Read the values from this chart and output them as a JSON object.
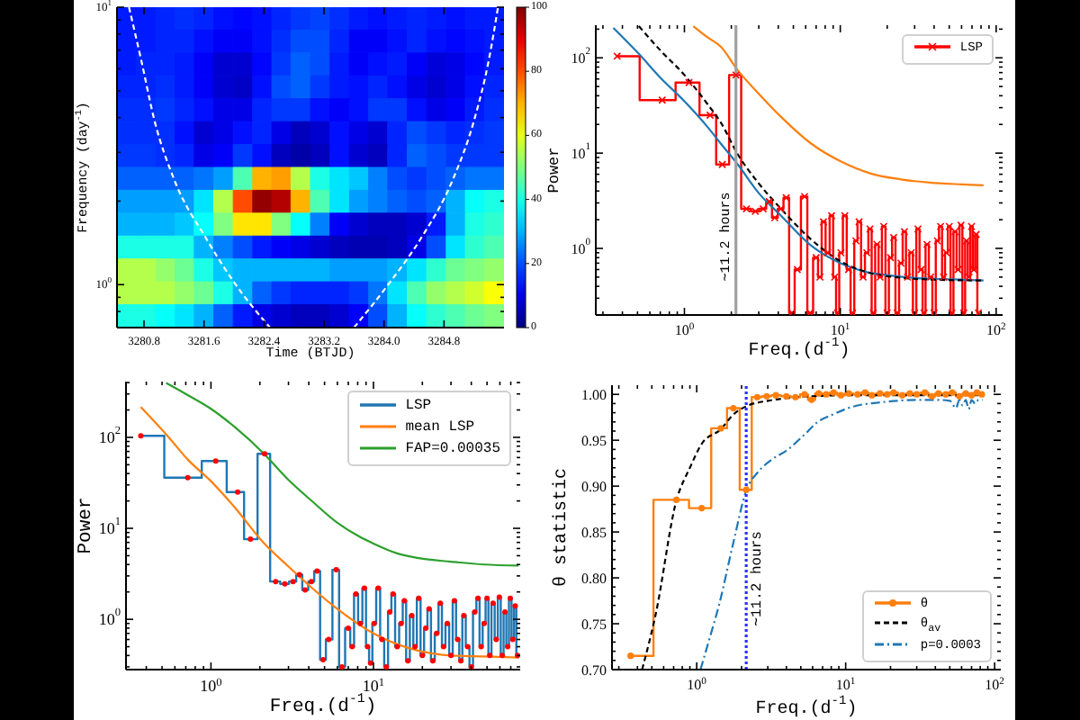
{
  "chart_data": [
    {
      "type": "heatmap",
      "xlabel": "Time (BTJD)",
      "ylabel": "Frequency (day$^{-1}$)",
      "log": "y",
      "xlim": [
        3280.44,
        3285.6
      ],
      "xticks": [
        3280.8,
        3281.6,
        3282.4,
        3283.2,
        {
          "value": 3284,
          "label": "3284.0"
        },
        3284.8
      ],
      "ylim": [
        0.7,
        10
      ],
      "yticks": [
        {
          "value": 0.8,
          "label": null
        },
        {
          "value": 0.9,
          "label": null
        },
        {
          "value": 1,
          "label": "10$^{0}$"
        },
        {
          "value": 2,
          "label": null
        },
        {
          "value": 3,
          "label": null
        },
        {
          "value": 4,
          "label": null
        },
        {
          "value": 5,
          "label": null
        },
        {
          "value": 6,
          "label": null
        },
        {
          "value": 7,
          "label": null
        },
        {
          "value": 8,
          "label": null
        },
        {
          "value": 9,
          "label": null
        },
        {
          "value": 10,
          "label": "10$^{1}$"
        }
      ],
      "x": [
        3280.57,
        3280.83,
        3281.09,
        3281.34,
        3281.6,
        3281.86,
        3282.12,
        3282.38,
        3282.63,
        3282.89,
        3283.15,
        3283.41,
        3283.67,
        3283.92,
        3284.18,
        3284.44,
        3284.7,
        3284.96,
        3285.21,
        3285.47
      ],
      "cells": [
        [
          15,
          15,
          16,
          17,
          16,
          14,
          13,
          14,
          16,
          18,
          19,
          17,
          15,
          14,
          15,
          16,
          15,
          14,
          15,
          15
        ],
        [
          15,
          15,
          16,
          16,
          14,
          12,
          12,
          14,
          17,
          20,
          20,
          16,
          12,
          12,
          14,
          16,
          14,
          13,
          14,
          15
        ],
        [
          15,
          16,
          16,
          15,
          12,
          8,
          8,
          13,
          18,
          22,
          20,
          15,
          12,
          14,
          15,
          12,
          9,
          10,
          13,
          15
        ],
        [
          16,
          16,
          17,
          15,
          12,
          8,
          7,
          14,
          20,
          22,
          18,
          15,
          14,
          16,
          14,
          10,
          8,
          10,
          14,
          16
        ],
        [
          17,
          17,
          18,
          16,
          14,
          10,
          10,
          16,
          18,
          18,
          14,
          12,
          14,
          18,
          18,
          14,
          10,
          12,
          15,
          17
        ],
        [
          17,
          17,
          17,
          14,
          8,
          10,
          14,
          16,
          10,
          6,
          8,
          14,
          10,
          8,
          16,
          20,
          18,
          16,
          17,
          18
        ],
        [
          18,
          18,
          17,
          16,
          10,
          12,
          18,
          14,
          6,
          4,
          6,
          14,
          8,
          6,
          16,
          22,
          20,
          18,
          18,
          18
        ],
        [
          22,
          22,
          22,
          22,
          24,
          28,
          45,
          70,
          72,
          55,
          40,
          35,
          32,
          25,
          20,
          18,
          20,
          22,
          24,
          24
        ],
        [
          28,
          28,
          28,
          28,
          35,
          55,
          80,
          98,
          95,
          70,
          45,
          35,
          28,
          25,
          22,
          20,
          22,
          30,
          38,
          40
        ],
        [
          30,
          30,
          30,
          32,
          38,
          50,
          65,
          65,
          50,
          38,
          25,
          12,
          8,
          6,
          6,
          8,
          15,
          30,
          40,
          42
        ],
        [
          40,
          40,
          40,
          40,
          30,
          25,
          20,
          15,
          12,
          10,
          8,
          6,
          5,
          5,
          6,
          10,
          20,
          35,
          42,
          45
        ],
        [
          55,
          55,
          52,
          48,
          40,
          32,
          30,
          30,
          30,
          30,
          30,
          28,
          28,
          28,
          30,
          35,
          42,
          48,
          50,
          52
        ],
        [
          55,
          55,
          55,
          52,
          48,
          40,
          30,
          22,
          18,
          16,
          16,
          16,
          18,
          24,
          35,
          45,
          52,
          55,
          58,
          62
        ],
        [
          40,
          40,
          38,
          35,
          30,
          22,
          15,
          10,
          8,
          6,
          6,
          8,
          12,
          20,
          30,
          38,
          42,
          45,
          48,
          50
        ]
      ],
      "clim": [
        0,
        100
      ],
      "cticks": [
        0,
        20,
        40,
        60,
        80,
        100
      ],
      "series": [
        {
          "type": "line",
          "color": "#ffffff",
          "line_style": "dashed",
          "x": [
            3280.6,
            3280.76,
            3280.94,
            3281.2,
            3281.64,
            3282.0,
            3282.48
          ],
          "values": [
            10,
            6.5,
            3.9,
            2.4,
            1.45,
            1.02,
            0.7
          ]
        },
        {
          "type": "line",
          "color": "#ffffff",
          "line_style": "dashed",
          "x": [
            3283.6,
            3284.08,
            3284.48,
            3284.92,
            3285.2,
            3285.4,
            3285.52
          ],
          "values": [
            0.7,
            1.02,
            1.45,
            2.4,
            3.9,
            6.5,
            10
          ]
        }
      ]
    },
    {
      "type": "line",
      "xlabel": "Freq.(d$^{-1}$)",
      "ylabel": "Power",
      "log": "xy",
      "legend": "top right",
      "xlim": [
        0.27,
        110
      ],
      "xticks": [
        {
          "value": 0.3,
          "label": null
        },
        {
          "value": 0.4,
          "label": null
        },
        {
          "value": 0.5,
          "label": null
        },
        {
          "value": 0.6,
          "label": null
        },
        {
          "value": 0.7,
          "label": null
        },
        {
          "value": 0.8,
          "label": null
        },
        {
          "value": 0.9,
          "label": null
        },
        {
          "value": 1,
          "label": "10$^{0}$"
        },
        {
          "value": 2,
          "label": null
        },
        {
          "value": 3,
          "label": null
        },
        {
          "value": 4,
          "label": null
        },
        {
          "value": 5,
          "label": null
        },
        {
          "value": 6,
          "label": null
        },
        {
          "value": 7,
          "label": null
        },
        {
          "value": 8,
          "label": null
        },
        {
          "value": 9,
          "label": null
        },
        {
          "value": 10,
          "label": "10$^{1}$"
        },
        {
          "value": 20,
          "label": null
        },
        {
          "value": 30,
          "label": null
        },
        {
          "value": 40,
          "label": null
        },
        {
          "value": 50,
          "label": null
        },
        {
          "value": 60,
          "label": null
        },
        {
          "value": 70,
          "label": null
        },
        {
          "value": 80,
          "label": null
        },
        {
          "value": 90,
          "label": null
        },
        {
          "value": 100,
          "label": "10$^{2}$"
        }
      ],
      "ylim": [
        0.2,
        220
      ],
      "yticks": [
        {
          "value": 0.3,
          "label": null
        },
        {
          "value": 0.4,
          "label": null
        },
        {
          "value": 0.5,
          "label": null
        },
        {
          "value": 0.6,
          "label": null
        },
        {
          "value": 0.7,
          "label": null
        },
        {
          "value": 0.8,
          "label": null
        },
        {
          "value": 0.9,
          "label": null
        },
        {
          "value": 1,
          "label": "10$^{0}$"
        },
        {
          "value": 2,
          "label": null
        },
        {
          "value": 3,
          "label": null
        },
        {
          "value": 4,
          "label": null
        },
        {
          "value": 5,
          "label": null
        },
        {
          "value": 6,
          "label": null
        },
        {
          "value": 7,
          "label": null
        },
        {
          "value": 8,
          "label": null
        },
        {
          "value": 9,
          "label": null
        },
        {
          "value": 10,
          "label": "10$^{1}$"
        },
        {
          "value": 20,
          "label": null
        },
        {
          "value": 30,
          "label": null
        },
        {
          "value": 40,
          "label": null
        },
        {
          "value": 50,
          "label": null
        },
        {
          "value": 60,
          "label": null
        },
        {
          "value": 70,
          "label": null
        },
        {
          "value": 80,
          "label": null
        },
        {
          "value": 90,
          "label": null
        },
        {
          "value": 100,
          "label": "10$^{2}$"
        },
        {
          "value": 200,
          "label": null
        }
      ],
      "series": [
        {
          "name": "LSP",
          "type": "step",
          "color": "#ff0000",
          "marker": "cross",
          "x": [
            0.37,
            0.72,
            1.07,
            1.46,
            1.75,
            2.14,
            2.5,
            2.85,
            3.2,
            3.5,
            3.8,
            4.15,
            4.5,
            4.9,
            5.3,
            5.9,
            6.4,
            7.0,
            7.4,
            7.8,
            8.3,
            8.8,
            9.2,
            9.6,
            10.1,
            10.7,
            11.3,
            12.0,
            12.6,
            13.2,
            14.0,
            14.8,
            15.5,
            16.3,
            17.2,
            18.0,
            19.0,
            20.0,
            21.0,
            22.0,
            23.2,
            24.5,
            25.8,
            27.0,
            28.5,
            30.0,
            31.5,
            33.0,
            34.5,
            36.0,
            38.0,
            40.0,
            42.0,
            44.0,
            46.0,
            48.0,
            50.0,
            52.0,
            54.5,
            57.0,
            59.5,
            62.0,
            64.5,
            67.0,
            69.5,
            72.0,
            74.5,
            77.0
          ],
          "values": [
            104,
            36,
            55,
            25,
            7.6,
            66,
            2.6,
            2.45,
            2.6,
            3.1,
            2.1,
            2.6,
            3.4,
            0.21,
            0.6,
            3.5,
            0.21,
            0.8,
            0.5,
            1.9,
            0.9,
            2.2,
            0.5,
            0.21,
            0.9,
            2.2,
            0.6,
            0.21,
            1.2,
            1.9,
            0.5,
            0.9,
            1.6,
            0.21,
            1.1,
            0.5,
            1.7,
            0.21,
            0.8,
            1.3,
            0.21,
            0.7,
            1.5,
            0.5,
            0.9,
            0.21,
            1.6,
            0.6,
            0.21,
            1.1,
            0.5,
            0.21,
            1.2,
            1.7,
            0.5,
            0.9,
            1.7,
            0.21,
            1.5,
            0.6,
            1.75,
            0.21,
            1.2,
            0.5,
            1.7,
            0.6,
            1.4,
            0.21
          ]
        },
        {
          "type": "line",
          "color": "#1f77b4",
          "x": [
            0.35,
            0.51,
            0.7,
            1,
            1.4,
            1.71,
            2.2,
            3,
            4.17,
            6.5,
            10.2,
            15,
            21,
            30,
            40,
            60,
            83
          ],
          "values": [
            206,
            110,
            62,
            35,
            19,
            12.6,
            7.6,
            3.8,
            2.2,
            1.07,
            0.69,
            0.56,
            0.52,
            0.49,
            0.48,
            0.47,
            0.46
          ]
        },
        {
          "type": "line",
          "color": "#000000",
          "line_style": "dashed",
          "x": [
            0.51,
            0.7,
            1,
            1.4,
            1.71,
            2.2,
            3,
            4.17,
            6.5,
            10.2,
            15.7,
            25,
            40,
            83
          ],
          "values": [
            215,
            120,
            66,
            33,
            21,
            9.7,
            4.8,
            2.6,
            1.24,
            0.72,
            0.55,
            0.49,
            0.47,
            0.46
          ]
        },
        {
          "type": "line",
          "color": "#ff7f0e",
          "x": [
            1.14,
            1.4,
            1.71,
            2.2,
            3,
            4.17,
            6.5,
            10.2,
            15.7,
            24.5,
            37.5,
            60,
            83
          ],
          "values": [
            215,
            165,
            131,
            74,
            42,
            24,
            12.6,
            8.1,
            6.1,
            5.3,
            4.9,
            4.7,
            4.6
          ]
        }
      ],
      "ref_lines": [
        {
          "axis": "x",
          "value": 2.14,
          "label": "∼11.2 hours",
          "color": "#a0a0a0"
        }
      ]
    },
    {
      "type": "line",
      "xlabel": "Freq.(d$^{-1}$)",
      "ylabel": "Power",
      "log": "xy",
      "legend": "top right",
      "xlim": [
        0.3,
        80
      ],
      "xticks": [
        {
          "value": 0.4,
          "label": null
        },
        {
          "value": 0.5,
          "label": null
        },
        {
          "value": 0.6,
          "label": null
        },
        {
          "value": 0.7,
          "label": null
        },
        {
          "value": 0.8,
          "label": null
        },
        {
          "value": 0.9,
          "label": null
        },
        {
          "value": 1,
          "label": "10$^{0}$"
        },
        {
          "value": 2,
          "label": null
        },
        {
          "value": 3,
          "label": null
        },
        {
          "value": 4,
          "label": null
        },
        {
          "value": 5,
          "label": null
        },
        {
          "value": 6,
          "label": null
        },
        {
          "value": 7,
          "label": null
        },
        {
          "value": 8,
          "label": null
        },
        {
          "value": 9,
          "label": null
        },
        {
          "value": 10,
          "label": "10$^{1}$"
        },
        {
          "value": 20,
          "label": null
        },
        {
          "value": 30,
          "label": null
        },
        {
          "value": 40,
          "label": null
        },
        {
          "value": 50,
          "label": null
        },
        {
          "value": 60,
          "label": null
        },
        {
          "value": 70,
          "label": null
        }
      ],
      "ylim": [
        0.28,
        410
      ],
      "yticks": [
        {
          "value": 0.3,
          "label": null
        },
        {
          "value": 0.4,
          "label": null
        },
        {
          "value": 0.5,
          "label": null
        },
        {
          "value": 0.6,
          "label": null
        },
        {
          "value": 0.7,
          "label": null
        },
        {
          "value": 0.8,
          "label": null
        },
        {
          "value": 0.9,
          "label": null
        },
        {
          "value": 1,
          "label": "10$^{0}$"
        },
        {
          "value": 2,
          "label": null
        },
        {
          "value": 3,
          "label": null
        },
        {
          "value": 4,
          "label": null
        },
        {
          "value": 5,
          "label": null
        },
        {
          "value": 6,
          "label": null
        },
        {
          "value": 7,
          "label": null
        },
        {
          "value": 8,
          "label": null
        },
        {
          "value": 9,
          "label": null
        },
        {
          "value": 10,
          "label": "10$^{1}$"
        },
        {
          "value": 20,
          "label": null
        },
        {
          "value": 30,
          "label": null
        },
        {
          "value": 40,
          "label": null
        },
        {
          "value": 50,
          "label": null
        },
        {
          "value": 60,
          "label": null
        },
        {
          "value": 70,
          "label": null
        },
        {
          "value": 80,
          "label": null
        },
        {
          "value": 90,
          "label": null
        },
        {
          "value": 100,
          "label": "10$^{2}$"
        },
        {
          "value": 200,
          "label": null
        },
        {
          "value": 300,
          "label": null
        },
        {
          "value": 400,
          "label": null
        }
      ],
      "series": [
        {
          "name": "LSP",
          "type": "step",
          "color": "#1f77b4",
          "x": [
            0.37,
            0.72,
            1.07,
            1.46,
            1.75,
            2.14,
            2.5,
            2.85,
            3.2,
            3.5,
            3.8,
            4.15,
            4.5,
            4.9,
            5.3,
            5.9,
            6.4,
            7.0,
            7.4,
            7.8,
            8.3,
            8.8,
            9.2,
            9.6,
            10.1,
            10.7,
            11.3,
            12.0,
            12.6,
            13.2,
            14.0,
            14.8,
            15.5,
            16.3,
            17.2,
            18.0,
            19.0,
            20.0,
            21.0,
            22.0,
            23.2,
            24.5,
            25.8,
            27.0,
            28.5,
            30.0,
            31.5,
            33.0,
            34.5,
            36.0,
            38.0,
            40.0,
            42.0,
            44.0,
            46.0,
            48.0,
            50.0,
            52.0,
            54.5,
            57.0,
            59.5,
            62.0,
            64.5,
            67.0,
            69.5,
            72.0,
            74.5,
            77.0
          ],
          "values": [
            104,
            36,
            55,
            25,
            7.6,
            66,
            2.6,
            2.45,
            2.6,
            3.1,
            2.1,
            2.6,
            3.4,
            0.36,
            0.6,
            3.5,
            0.3,
            0.8,
            0.5,
            1.9,
            0.9,
            2.2,
            0.5,
            0.33,
            0.9,
            2.2,
            0.6,
            0.3,
            1.2,
            1.9,
            0.5,
            0.9,
            1.6,
            0.35,
            1.1,
            0.5,
            1.7,
            0.4,
            0.8,
            1.3,
            0.35,
            0.7,
            1.5,
            0.5,
            0.9,
            0.4,
            1.6,
            0.6,
            0.35,
            1.1,
            0.5,
            0.3,
            1.2,
            1.7,
            0.5,
            0.9,
            1.7,
            0.4,
            1.5,
            0.6,
            1.75,
            0.4,
            1.2,
            0.5,
            1.7,
            0.6,
            1.4,
            0.4
          ]
        },
        {
          "name": "mean LSP",
          "type": "line",
          "color": "#ff7f0e",
          "x": [
            0.37,
            0.55,
            0.72,
            1,
            1.4,
            2.1,
            3,
            4.2,
            6,
            10,
            19,
            30,
            48,
            78
          ],
          "values": [
            215,
            100,
            57,
            33,
            17,
            7.0,
            3.8,
            2.2,
            1.3,
            0.7,
            0.45,
            0.4,
            0.39,
            0.38
          ]
        },
        {
          "name": "FAP=0.00035",
          "type": "line",
          "color": "#2ca02c",
          "x": [
            0.53,
            0.7,
            1,
            1.4,
            2.12,
            3,
            4.2,
            6,
            8.3,
            10,
            14,
            19,
            30,
            48,
            78
          ],
          "values": [
            396,
            300,
            206,
            130,
            66,
            34,
            19.8,
            11.5,
            8.0,
            6.8,
            5.3,
            4.7,
            4.3,
            4.0,
            3.9
          ]
        },
        {
          "type": "scatter",
          "color": "#ff0000",
          "marker": "circle",
          "x": [
            0.37,
            0.72,
            1.07,
            1.46,
            1.75,
            2.14,
            2.5,
            2.85,
            3.2,
            3.5,
            3.8,
            4.15,
            4.5,
            4.9,
            5.3,
            5.9,
            6.4,
            7.0,
            7.4,
            7.8,
            8.3,
            8.8,
            9.2,
            9.6,
            10.1,
            10.7,
            11.3,
            12.0,
            12.6,
            13.2,
            14.0,
            14.8,
            15.5,
            16.3,
            17.2,
            18.0,
            19.0,
            20.0,
            21.0,
            22.0,
            23.2,
            24.5,
            25.8,
            27.0,
            28.5,
            30.0,
            31.5,
            33.0,
            34.5,
            36.0,
            38.0,
            40.0,
            42.0,
            44.0,
            46.0,
            48.0,
            50.0,
            52.0,
            54.5,
            57.0,
            59.5,
            62.0,
            64.5,
            67.0,
            69.5,
            72.0,
            74.5,
            77.0
          ],
          "values": [
            104,
            36,
            55,
            25,
            7.6,
            66,
            2.6,
            2.45,
            2.6,
            3.1,
            2.1,
            2.6,
            3.4,
            0.36,
            0.6,
            3.5,
            0.3,
            0.8,
            0.5,
            1.9,
            0.9,
            2.2,
            0.5,
            0.33,
            0.9,
            2.2,
            0.6,
            0.3,
            1.2,
            1.9,
            0.5,
            0.9,
            1.6,
            0.35,
            1.1,
            0.5,
            1.7,
            0.4,
            0.8,
            1.3,
            0.35,
            0.7,
            1.5,
            0.5,
            0.9,
            0.4,
            1.6,
            0.6,
            0.35,
            1.1,
            0.5,
            0.3,
            1.2,
            1.7,
            0.5,
            0.9,
            1.7,
            0.4,
            1.5,
            0.6,
            1.75,
            0.4,
            1.2,
            0.5,
            1.7,
            0.6,
            1.4,
            0.4
          ]
        }
      ]
    },
    {
      "type": "line",
      "xlabel": "Freq.(d$^{-1}$)",
      "ylabel": "θ statistic",
      "log": "x",
      "legend": "bottom right",
      "xlim": [
        0.27,
        110
      ],
      "xticks": [
        {
          "value": 0.3,
          "label": null
        },
        {
          "value": 0.4,
          "label": null
        },
        {
          "value": 0.5,
          "label": null
        },
        {
          "value": 0.6,
          "label": null
        },
        {
          "value": 0.7,
          "label": null
        },
        {
          "value": 0.8,
          "label": null
        },
        {
          "value": 0.9,
          "label": null
        },
        {
          "value": 1,
          "label": "10$^{0}$"
        },
        {
          "value": 2,
          "label": null
        },
        {
          "value": 3,
          "label": null
        },
        {
          "value": 4,
          "label": null
        },
        {
          "value": 5,
          "label": null
        },
        {
          "value": 6,
          "label": null
        },
        {
          "value": 7,
          "label": null
        },
        {
          "value": 8,
          "label": null
        },
        {
          "value": 9,
          "label": null
        },
        {
          "value": 10,
          "label": "10$^{1}$"
        },
        {
          "value": 20,
          "label": null
        },
        {
          "value": 30,
          "label": null
        },
        {
          "value": 40,
          "label": null
        },
        {
          "value": 50,
          "label": null
        },
        {
          "value": 60,
          "label": null
        },
        {
          "value": 70,
          "label": null
        },
        {
          "value": 80,
          "label": null
        },
        {
          "value": 90,
          "label": null
        },
        {
          "value": 100,
          "label": "10$^{2}$"
        }
      ],
      "ylim": [
        0.7,
        1.01
      ],
      "yticks": [
        {
          "value": 0.7,
          "label": "0.70"
        },
        {
          "value": 0.71,
          "label": null
        },
        {
          "value": 0.72,
          "label": null
        },
        {
          "value": 0.73,
          "label": null
        },
        {
          "value": 0.74,
          "label": null
        },
        0.75,
        {
          "value": 0.76,
          "label": null
        },
        {
          "value": 0.77,
          "label": null
        },
        {
          "value": 0.78,
          "label": null
        },
        {
          "value": 0.79,
          "label": null
        },
        {
          "value": 0.8,
          "label": "0.80"
        },
        {
          "value": 0.81,
          "label": null
        },
        {
          "value": 0.82,
          "label": null
        },
        {
          "value": 0.83,
          "label": null
        },
        {
          "value": 0.84,
          "label": null
        },
        0.85,
        {
          "value": 0.86,
          "label": null
        },
        {
          "value": 0.87,
          "label": null
        },
        {
          "value": 0.88,
          "label": null
        },
        {
          "value": 0.89,
          "label": null
        },
        {
          "value": 0.9,
          "label": "0.90"
        },
        {
          "value": 0.91,
          "label": null
        },
        {
          "value": 0.92,
          "label": null
        },
        {
          "value": 0.93,
          "label": null
        },
        {
          "value": 0.94,
          "label": null
        },
        0.95,
        {
          "value": 0.96,
          "label": null
        },
        {
          "value": 0.97,
          "label": null
        },
        {
          "value": 0.98,
          "label": null
        },
        {
          "value": 0.99,
          "label": null
        },
        {
          "value": 1,
          "label": "1.00"
        }
      ],
      "series": [
        {
          "name": "θ",
          "type": "step",
          "color": "#ff7f0e",
          "marker": "circle",
          "x": [
            0.36,
            0.73,
            1.08,
            1.45,
            1.76,
            2.15,
            2.55,
            2.95,
            3.4,
            4.0,
            4.6,
            5.3,
            5.9,
            6.6,
            7.4,
            8.3,
            9.3,
            10.5,
            12,
            13.5,
            15,
            17,
            19,
            21,
            24,
            27,
            30,
            34,
            38,
            42,
            47,
            52,
            58,
            64,
            70,
            76,
            82
          ],
          "values": [
            0.715,
            0.885,
            0.876,
            0.963,
            0.985,
            0.896,
            0.997,
            0.998,
            0.999,
            0.998,
            0.997,
            1.0,
            0.994,
            1.001,
            1.0,
            1.002,
            0.999,
            1.001,
            1.0,
            1.002,
            0.999,
            1.001,
            1.0,
            1.002,
            0.999,
            1.001,
            1.0,
            1.002,
            0.998,
            1.001,
            1.0,
            1.002,
            0.998,
            1.001,
            0.999,
            1.002,
            1.0
          ]
        },
        {
          "name": "θ$_{av}$",
          "type": "line",
          "color": "#000000",
          "line_style": "dashed",
          "x": [
            0.43,
            0.53,
            0.73,
            0.9,
            1.08,
            1.45,
            1.76,
            2.15,
            3.0,
            4.1,
            6,
            10.4,
            20,
            40,
            83
          ],
          "values": [
            0.7,
            0.76,
            0.884,
            0.92,
            0.946,
            0.962,
            0.978,
            0.987,
            0.993,
            0.996,
            0.998,
            0.999,
            0.999,
            0.999,
            0.999
          ]
        },
        {
          "name": "p=0.0003",
          "type": "line",
          "color": "#1f77b4",
          "line_style": "dashdot",
          "x": [
            1.06,
            1.2,
            1.42,
            1.76,
            2.15,
            2.6,
            3.2,
            4.1,
            5.2,
            6.5,
            8.2,
            10.4,
            13,
            16.5,
            22,
            30,
            41,
            50,
            55,
            58,
            61,
            64,
            67,
            70,
            74,
            78,
            83
          ],
          "values": [
            0.7,
            0.73,
            0.772,
            0.838,
            0.895,
            0.916,
            0.929,
            0.94,
            0.955,
            0.97,
            0.978,
            0.985,
            0.989,
            0.991,
            0.993,
            0.994,
            0.994,
            0.993,
            0.985,
            0.994,
            0.988,
            0.994,
            0.984,
            0.994,
            0.99,
            0.994,
            0.994
          ]
        }
      ],
      "ref_lines": [
        {
          "axis": "x",
          "value": 2.15,
          "label": "∼11.2 hours",
          "color": "#3030ff",
          "line_style": "dotted"
        }
      ]
    }
  ]
}
